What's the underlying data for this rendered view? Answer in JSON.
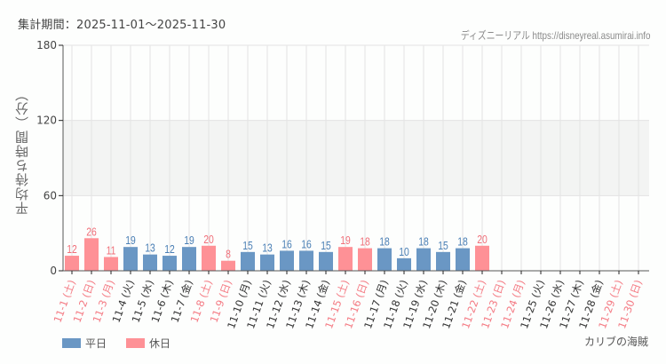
{
  "header": {
    "period_label": "集計期間：2025-11-01〜2025-11-30",
    "source_label": "ディズニーリアル https://disneyreal.asumirai.info"
  },
  "legend": {
    "weekday_label": "平日",
    "holiday_label": "休日"
  },
  "attraction_name": "カリブの海賊",
  "colors": {
    "weekday": "#6a97c4",
    "holiday": "#fe9196",
    "weekday_text": "#4a7fb5",
    "holiday_text": "#f0707a",
    "band": "#f3f4f3",
    "grid": "#e3e3e3",
    "axis": "#555555"
  },
  "chart_data": {
    "type": "bar",
    "title": "集計期間：2025-11-01〜2025-11-30",
    "xlabel": "",
    "ylabel": "平均待ち時間（分）",
    "ylim": [
      0,
      180
    ],
    "yticks": [
      0,
      60,
      120,
      180
    ],
    "grid": true,
    "shaded_band": [
      60,
      120
    ],
    "legend_position": "bottom-left",
    "categories": [
      "11-1 (土)",
      "11-2 (日)",
      "11-3 (月)",
      "11-4 (火)",
      "11-5 (水)",
      "11-6 (木)",
      "11-7 (金)",
      "11-8 (土)",
      "11-9 (日)",
      "11-10 (月)",
      "11-11 (火)",
      "11-12 (水)",
      "11-13 (木)",
      "11-14 (金)",
      "11-15 (土)",
      "11-16 (日)",
      "11-17 (月)",
      "11-18 (火)",
      "11-19 (水)",
      "11-20 (木)",
      "11-21 (金)",
      "11-22 (土)",
      "11-23 (日)",
      "11-24 (月)",
      "11-25 (火)",
      "11-26 (水)",
      "11-27 (木)",
      "11-28 (金)",
      "11-29 (土)",
      "11-30 (日)"
    ],
    "values": [
      12,
      26,
      11,
      19,
      13,
      12,
      19,
      20,
      8,
      15,
      13,
      16,
      16,
      15,
      19,
      18,
      18,
      10,
      18,
      15,
      18,
      20,
      null,
      null,
      null,
      null,
      null,
      null,
      null,
      null
    ],
    "day_type": [
      "holiday",
      "holiday",
      "holiday",
      "weekday",
      "weekday",
      "weekday",
      "weekday",
      "holiday",
      "holiday",
      "weekday",
      "weekday",
      "weekday",
      "weekday",
      "weekday",
      "holiday",
      "holiday",
      "weekday",
      "weekday",
      "weekday",
      "weekday",
      "weekday",
      "holiday",
      "holiday",
      "holiday",
      "weekday",
      "weekday",
      "weekday",
      "weekday",
      "holiday",
      "holiday"
    ],
    "series": [
      {
        "name": "平日",
        "color": "#6a97c4"
      },
      {
        "name": "休日",
        "color": "#fe9196"
      }
    ]
  }
}
